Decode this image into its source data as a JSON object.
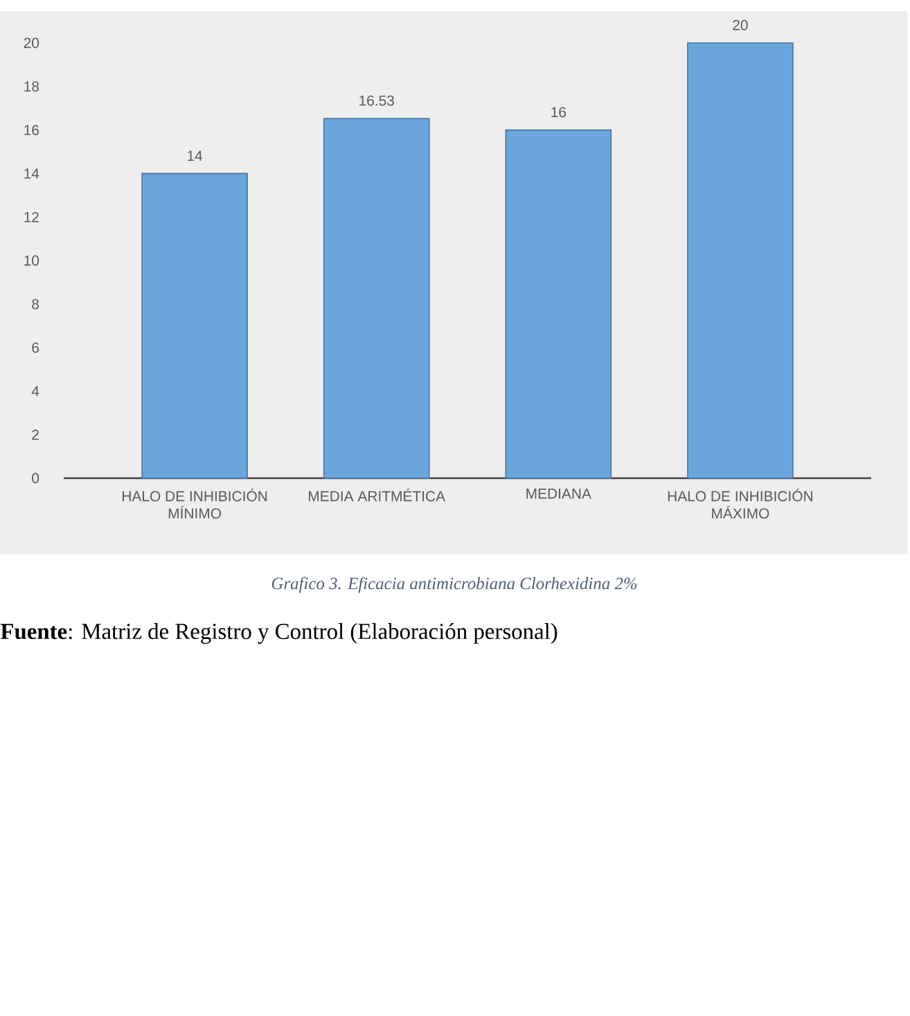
{
  "chart_data": {
    "type": "bar",
    "categories": [
      "HALO DE INHIBICIÓN MÍNIMO",
      "MEDIA ARITMÉTICA",
      "MEDIANA",
      "HALO DE INHIBICIÓN MÁXIMO"
    ],
    "values": [
      14,
      16.53,
      16,
      20
    ],
    "color": "#6aa6de",
    "ylim": [
      0,
      20
    ],
    "yticks": [
      0,
      2,
      4,
      6,
      8,
      10,
      12,
      14,
      16,
      18,
      20
    ],
    "data_labels": true,
    "annotations": [
      "Grafico 3. Eficacia antimicrobiana Clorhexidina 2%",
      "**Fuente**: Matriz de Registro y Control (Elaboración personal)"
    ]
  }
}
